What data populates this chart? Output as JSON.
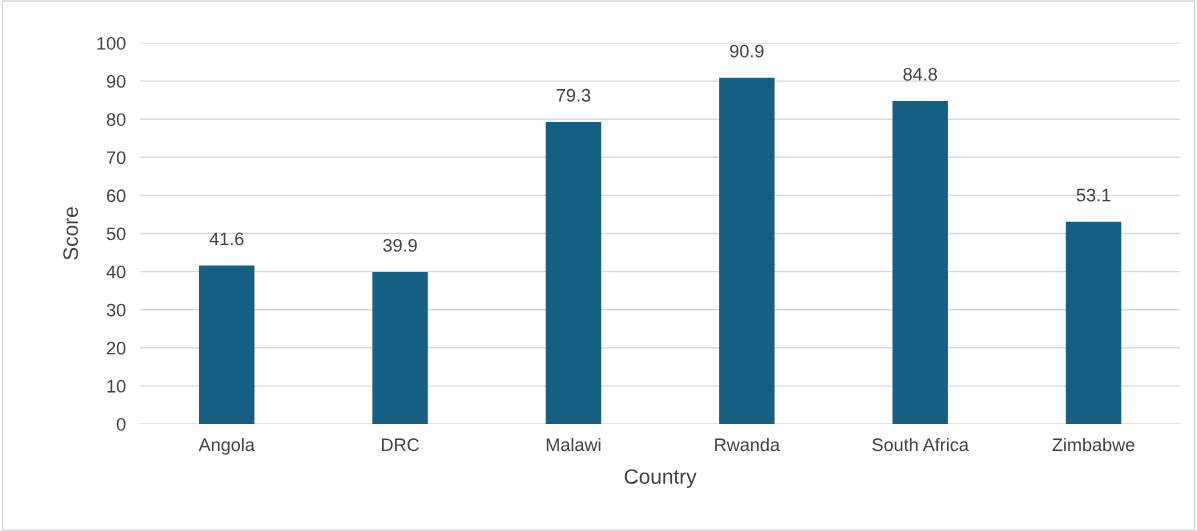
{
  "chart_data": {
    "type": "bar",
    "xlabel": "Country",
    "ylabel": "Score",
    "categories": [
      "Angola",
      "DRC",
      "Malawi",
      "Rwanda",
      "South Africa",
      "Zimbabwe"
    ],
    "values": [
      41.6,
      39.9,
      79.3,
      90.9,
      84.8,
      53.1
    ],
    "color": "#156082",
    "ylim": [
      0,
      100
    ],
    "yticks": [
      0,
      10,
      20,
      30,
      40,
      50,
      60,
      70,
      80,
      90,
      100
    ],
    "grid": "y",
    "data_labels": true
  }
}
